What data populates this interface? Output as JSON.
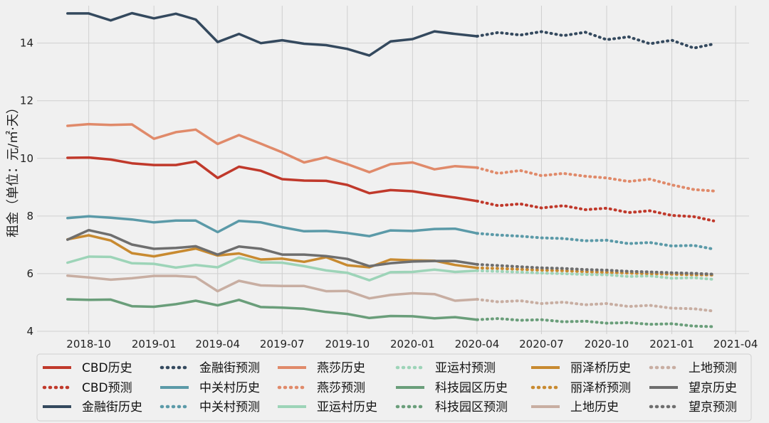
{
  "chart_data": {
    "type": "line",
    "ylabel": "租金（单位：元/㎡·天）",
    "ylim": [
      3.9,
      15.3
    ],
    "yticks": [
      4,
      6,
      8,
      10,
      12,
      14
    ],
    "xrange": [
      "2018-07-20",
      "2021-04-20"
    ],
    "xticks": [
      "2018-10",
      "2019-01",
      "2019-04",
      "2019-07",
      "2019-10",
      "2020-01",
      "2020-04",
      "2020-07",
      "2020-10",
      "2021-01",
      "2021-04"
    ],
    "grid": true,
    "legend_position": "bottom",
    "history_dates": [
      "2018-09",
      "2018-10",
      "2018-11",
      "2018-12",
      "2019-01",
      "2019-02",
      "2019-03",
      "2019-04",
      "2019-05",
      "2019-06",
      "2019-07",
      "2019-08",
      "2019-09",
      "2019-10",
      "2019-11",
      "2019-12",
      "2020-01",
      "2020-02",
      "2020-03",
      "2020-04"
    ],
    "forecast_dates": [
      "2020-04",
      "2020-05",
      "2020-06",
      "2020-07",
      "2020-08",
      "2020-09",
      "2020-10",
      "2020-11",
      "2020-12",
      "2021-01",
      "2021-02",
      "2021-03"
    ],
    "series": [
      {
        "name": "CBD历史",
        "kind": "history",
        "color": "#c0392b",
        "values": [
          10.02,
          10.03,
          9.96,
          9.83,
          9.77,
          9.77,
          9.89,
          9.32,
          9.71,
          9.57,
          9.28,
          9.23,
          9.22,
          9.08,
          8.79,
          8.9,
          8.86,
          8.74,
          8.64,
          8.52
        ]
      },
      {
        "name": "CBD预测",
        "kind": "forecast",
        "color": "#c0392b",
        "values": [
          8.52,
          8.36,
          8.42,
          8.28,
          8.36,
          8.22,
          8.27,
          8.12,
          8.18,
          8.02,
          7.98,
          7.83
        ]
      },
      {
        "name": "金融街历史",
        "kind": "history",
        "color": "#34495e",
        "values": [
          15.03,
          15.03,
          14.79,
          15.04,
          14.86,
          15.02,
          14.82,
          14.04,
          14.32,
          14.0,
          14.1,
          13.98,
          13.93,
          13.8,
          13.57,
          14.06,
          14.14,
          14.41,
          14.32,
          14.24
        ]
      },
      {
        "name": "金融街预测",
        "kind": "forecast",
        "color": "#34495e",
        "values": [
          14.24,
          14.37,
          14.28,
          14.4,
          14.26,
          14.38,
          14.12,
          14.22,
          13.98,
          14.1,
          13.83,
          13.97
        ]
      },
      {
        "name": "燕莎历史",
        "kind": "history",
        "color": "#e08a6a",
        "values": [
          11.13,
          11.19,
          11.16,
          11.18,
          10.68,
          10.91,
          11.0,
          10.5,
          10.81,
          10.51,
          10.21,
          9.86,
          10.04,
          9.8,
          9.52,
          9.8,
          9.86,
          9.62,
          9.73,
          9.68
        ]
      },
      {
        "name": "燕莎预测",
        "kind": "forecast",
        "color": "#e08a6a",
        "values": [
          9.68,
          9.48,
          9.58,
          9.4,
          9.48,
          9.38,
          9.32,
          9.2,
          9.28,
          9.08,
          8.92,
          8.87
        ]
      },
      {
        "name": "中关村历史",
        "kind": "history",
        "color": "#5b9aa8",
        "values": [
          7.93,
          7.99,
          7.94,
          7.88,
          7.78,
          7.84,
          7.84,
          7.44,
          7.83,
          7.78,
          7.61,
          7.47,
          7.48,
          7.41,
          7.3,
          7.5,
          7.48,
          7.55,
          7.56,
          7.4
        ]
      },
      {
        "name": "中关村预测",
        "kind": "forecast",
        "color": "#5b9aa8",
        "values": [
          7.4,
          7.34,
          7.3,
          7.24,
          7.22,
          7.14,
          7.16,
          7.04,
          7.08,
          6.96,
          6.98,
          6.85
        ]
      },
      {
        "name": "亚运村历史",
        "kind": "history",
        "color": "#9dd4b8",
        "values": [
          6.38,
          6.59,
          6.58,
          6.36,
          6.34,
          6.21,
          6.3,
          6.22,
          6.56,
          6.39,
          6.38,
          6.26,
          6.11,
          6.03,
          5.77,
          6.05,
          6.06,
          6.14,
          6.06,
          6.1
        ]
      },
      {
        "name": "亚运村预测",
        "kind": "forecast",
        "color": "#9dd4b8",
        "values": [
          6.1,
          6.08,
          6.05,
          6.02,
          6.0,
          5.97,
          5.96,
          5.9,
          5.92,
          5.84,
          5.86,
          5.8
        ]
      },
      {
        "name": "科技园区历史",
        "kind": "history",
        "color": "#6a9e7a",
        "values": [
          5.11,
          5.09,
          5.1,
          4.87,
          4.85,
          4.94,
          5.06,
          4.9,
          5.09,
          4.84,
          4.82,
          4.78,
          4.67,
          4.6,
          4.46,
          4.53,
          4.52,
          4.45,
          4.49,
          4.4
        ]
      },
      {
        "name": "科技园区预测",
        "kind": "forecast",
        "color": "#6a9e7a",
        "values": [
          4.4,
          4.44,
          4.38,
          4.4,
          4.33,
          4.35,
          4.28,
          4.3,
          4.24,
          4.26,
          4.18,
          4.16
        ]
      },
      {
        "name": "丽泽桥历史",
        "kind": "history",
        "color": "#c88a30",
        "values": [
          7.19,
          7.33,
          7.15,
          6.71,
          6.6,
          6.74,
          6.87,
          6.63,
          6.7,
          6.49,
          6.52,
          6.41,
          6.57,
          6.29,
          6.22,
          6.49,
          6.46,
          6.45,
          6.3,
          6.2
        ]
      },
      {
        "name": "丽泽桥预测",
        "kind": "forecast",
        "color": "#c88a30",
        "values": [
          6.2,
          6.18,
          6.15,
          6.12,
          6.1,
          6.07,
          6.05,
          6.02,
          6.0,
          5.98,
          5.96,
          5.95
        ]
      },
      {
        "name": "上地历史",
        "kind": "history",
        "color": "#c8aea2",
        "values": [
          5.93,
          5.87,
          5.79,
          5.84,
          5.92,
          5.92,
          5.88,
          5.39,
          5.75,
          5.59,
          5.57,
          5.57,
          5.39,
          5.4,
          5.14,
          5.26,
          5.32,
          5.29,
          5.06,
          5.11
        ]
      },
      {
        "name": "上地预测",
        "kind": "forecast",
        "color": "#c8aea2",
        "values": [
          5.11,
          5.02,
          5.06,
          4.96,
          5.01,
          4.92,
          4.96,
          4.86,
          4.9,
          4.8,
          4.78,
          4.7
        ]
      },
      {
        "name": "望京历史",
        "kind": "history",
        "color": "#6e6e6e",
        "values": [
          7.18,
          7.51,
          7.34,
          7.01,
          6.86,
          6.89,
          6.95,
          6.66,
          6.94,
          6.86,
          6.66,
          6.66,
          6.61,
          6.51,
          6.26,
          6.36,
          6.42,
          6.44,
          6.44,
          6.32
        ]
      },
      {
        "name": "望京预测",
        "kind": "forecast",
        "color": "#6e6e6e",
        "values": [
          6.32,
          6.28,
          6.24,
          6.2,
          6.18,
          6.14,
          6.12,
          6.08,
          6.06,
          6.03,
          6.01,
          5.98
        ]
      }
    ],
    "legend_order": [
      "CBD历史",
      "CBD预测",
      "金融街历史",
      "金融街预测",
      "中关村历史",
      "中关村预测",
      "燕莎历史",
      "燕莎预测",
      "亚运村历史",
      "亚运村预测",
      "科技园区历史",
      "科技园区预测",
      "丽泽桥历史",
      "丽泽桥预测",
      "上地历史",
      "上地预测",
      "望京历史",
      "望京预测"
    ]
  }
}
